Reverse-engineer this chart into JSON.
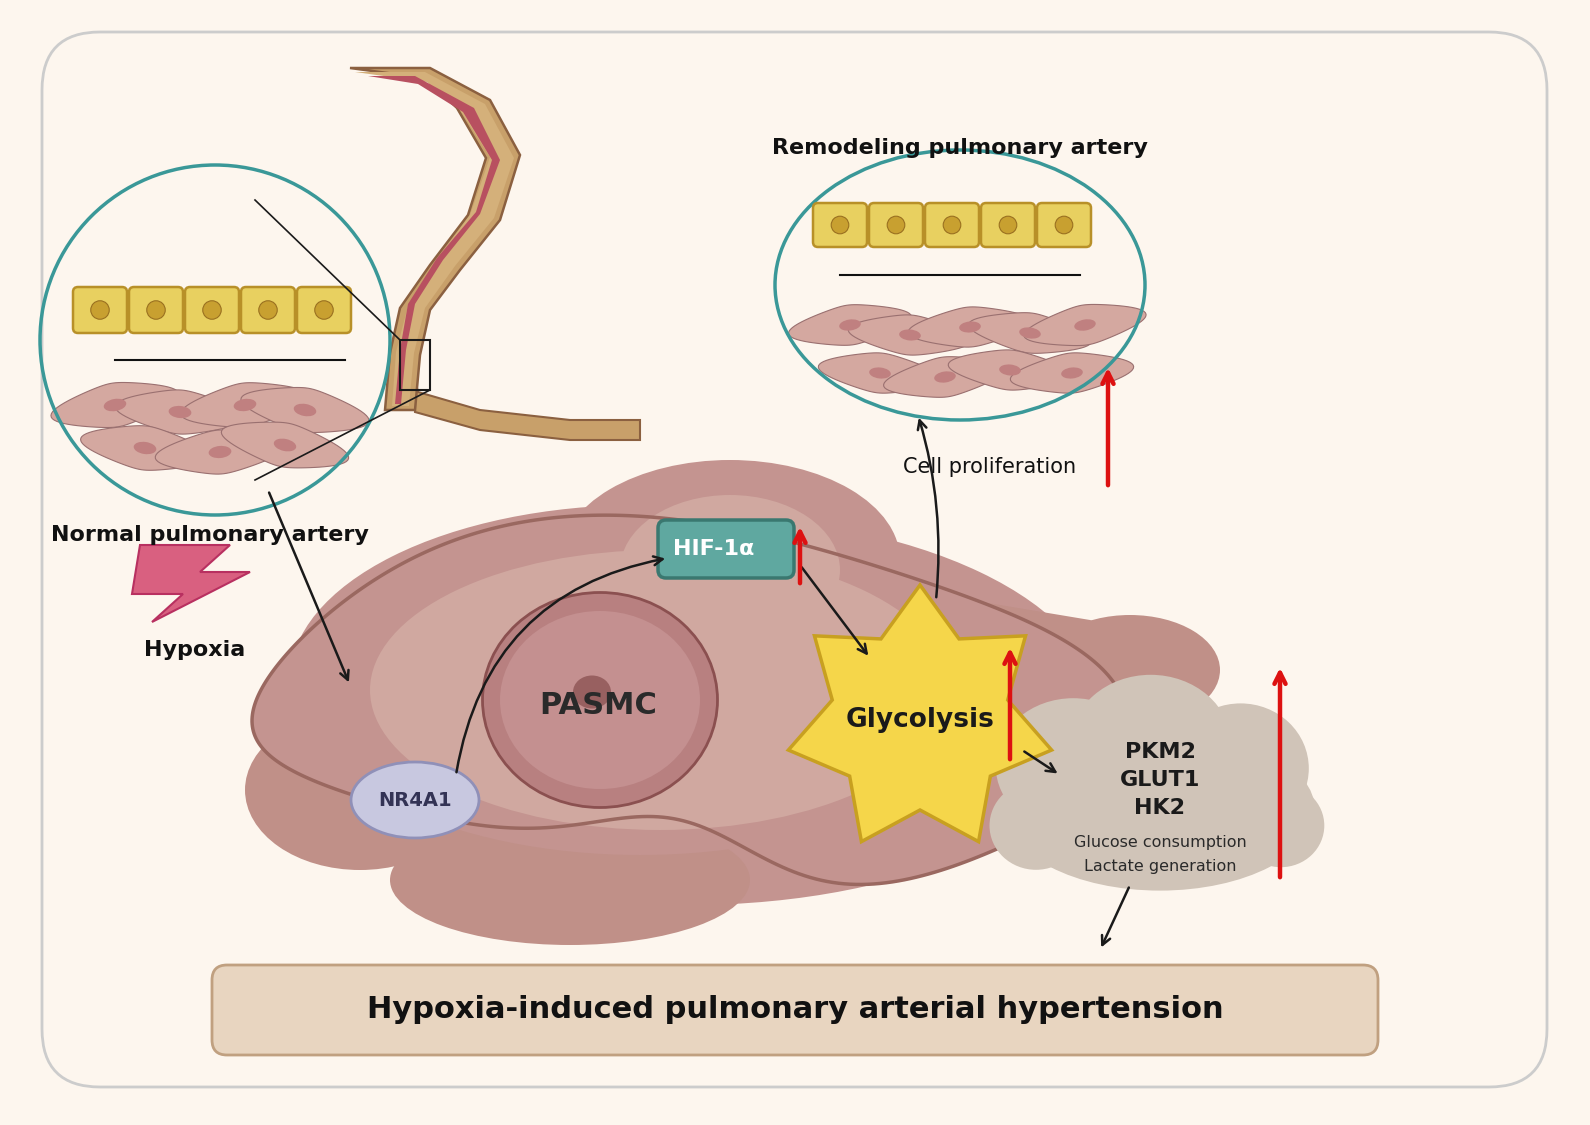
{
  "bg_color": "#fdf6ee",
  "outer_border_color": "#cccccc",
  "title_text": "Hypoxia-induced pulmonary arterial hypertension",
  "title_bg": "#e8d5c0",
  "title_color": "#111111",
  "normal_artery_label": "Normal pulmonary artery",
  "remodeling_artery_label": "Remodeling pulmonary artery",
  "hypoxia_label": "Hypoxia",
  "hypoxia_color": "#d96080",
  "pasmc_label": "PASMC",
  "nr4a1_label": "NR4A1",
  "nr4a1_bg": "#c8c8e0",
  "nr4a1_border": "#9090b8",
  "hif1a_label": "HIF-1α",
  "hif1a_bg": "#5fa8a0",
  "hif1a_border": "#3a7870",
  "glycolysis_label": "Glycolysis",
  "glycolysis_fill": "#f5d64a",
  "glycolysis_border": "#c8a020",
  "cell_prolif_label": "Cell proliferation",
  "cloud_label_bold1": "PKM2",
  "cloud_label_bold2": "GLUT1",
  "cloud_label_bold3": "HK2",
  "cloud_label_norm1": "Glucose consumption",
  "cloud_label_norm2": "Lactate generation",
  "cell_body_outer": "#c09088",
  "cell_body_main": "#c49490",
  "cell_body_inner": "#d0a8a0",
  "cell_border": "#9a6860",
  "nucleus_outer": "#b88080",
  "nucleus_inner": "#c49090",
  "nucleus_spot": "#986060",
  "arrow_color": "#1a1a1a",
  "red_color": "#dd1111",
  "cloud_bg": "#d0c4b8",
  "cloud_border": "#a08878",
  "brick_fill": "#e8d060",
  "brick_border": "#b89028",
  "brick_hole": "#c8a030",
  "spindle_fill": "#d4a8a0",
  "spindle_border": "#9a7070",
  "spindle_nuc": "#c08080",
  "vessel_outer": "#c8a06a",
  "vessel_wall": "#d4b07a",
  "vessel_lumen": "#b85060",
  "vessel_border": "#8b6040",
  "teal_circle": "#3a9898",
  "annotation_line": "#222222"
}
